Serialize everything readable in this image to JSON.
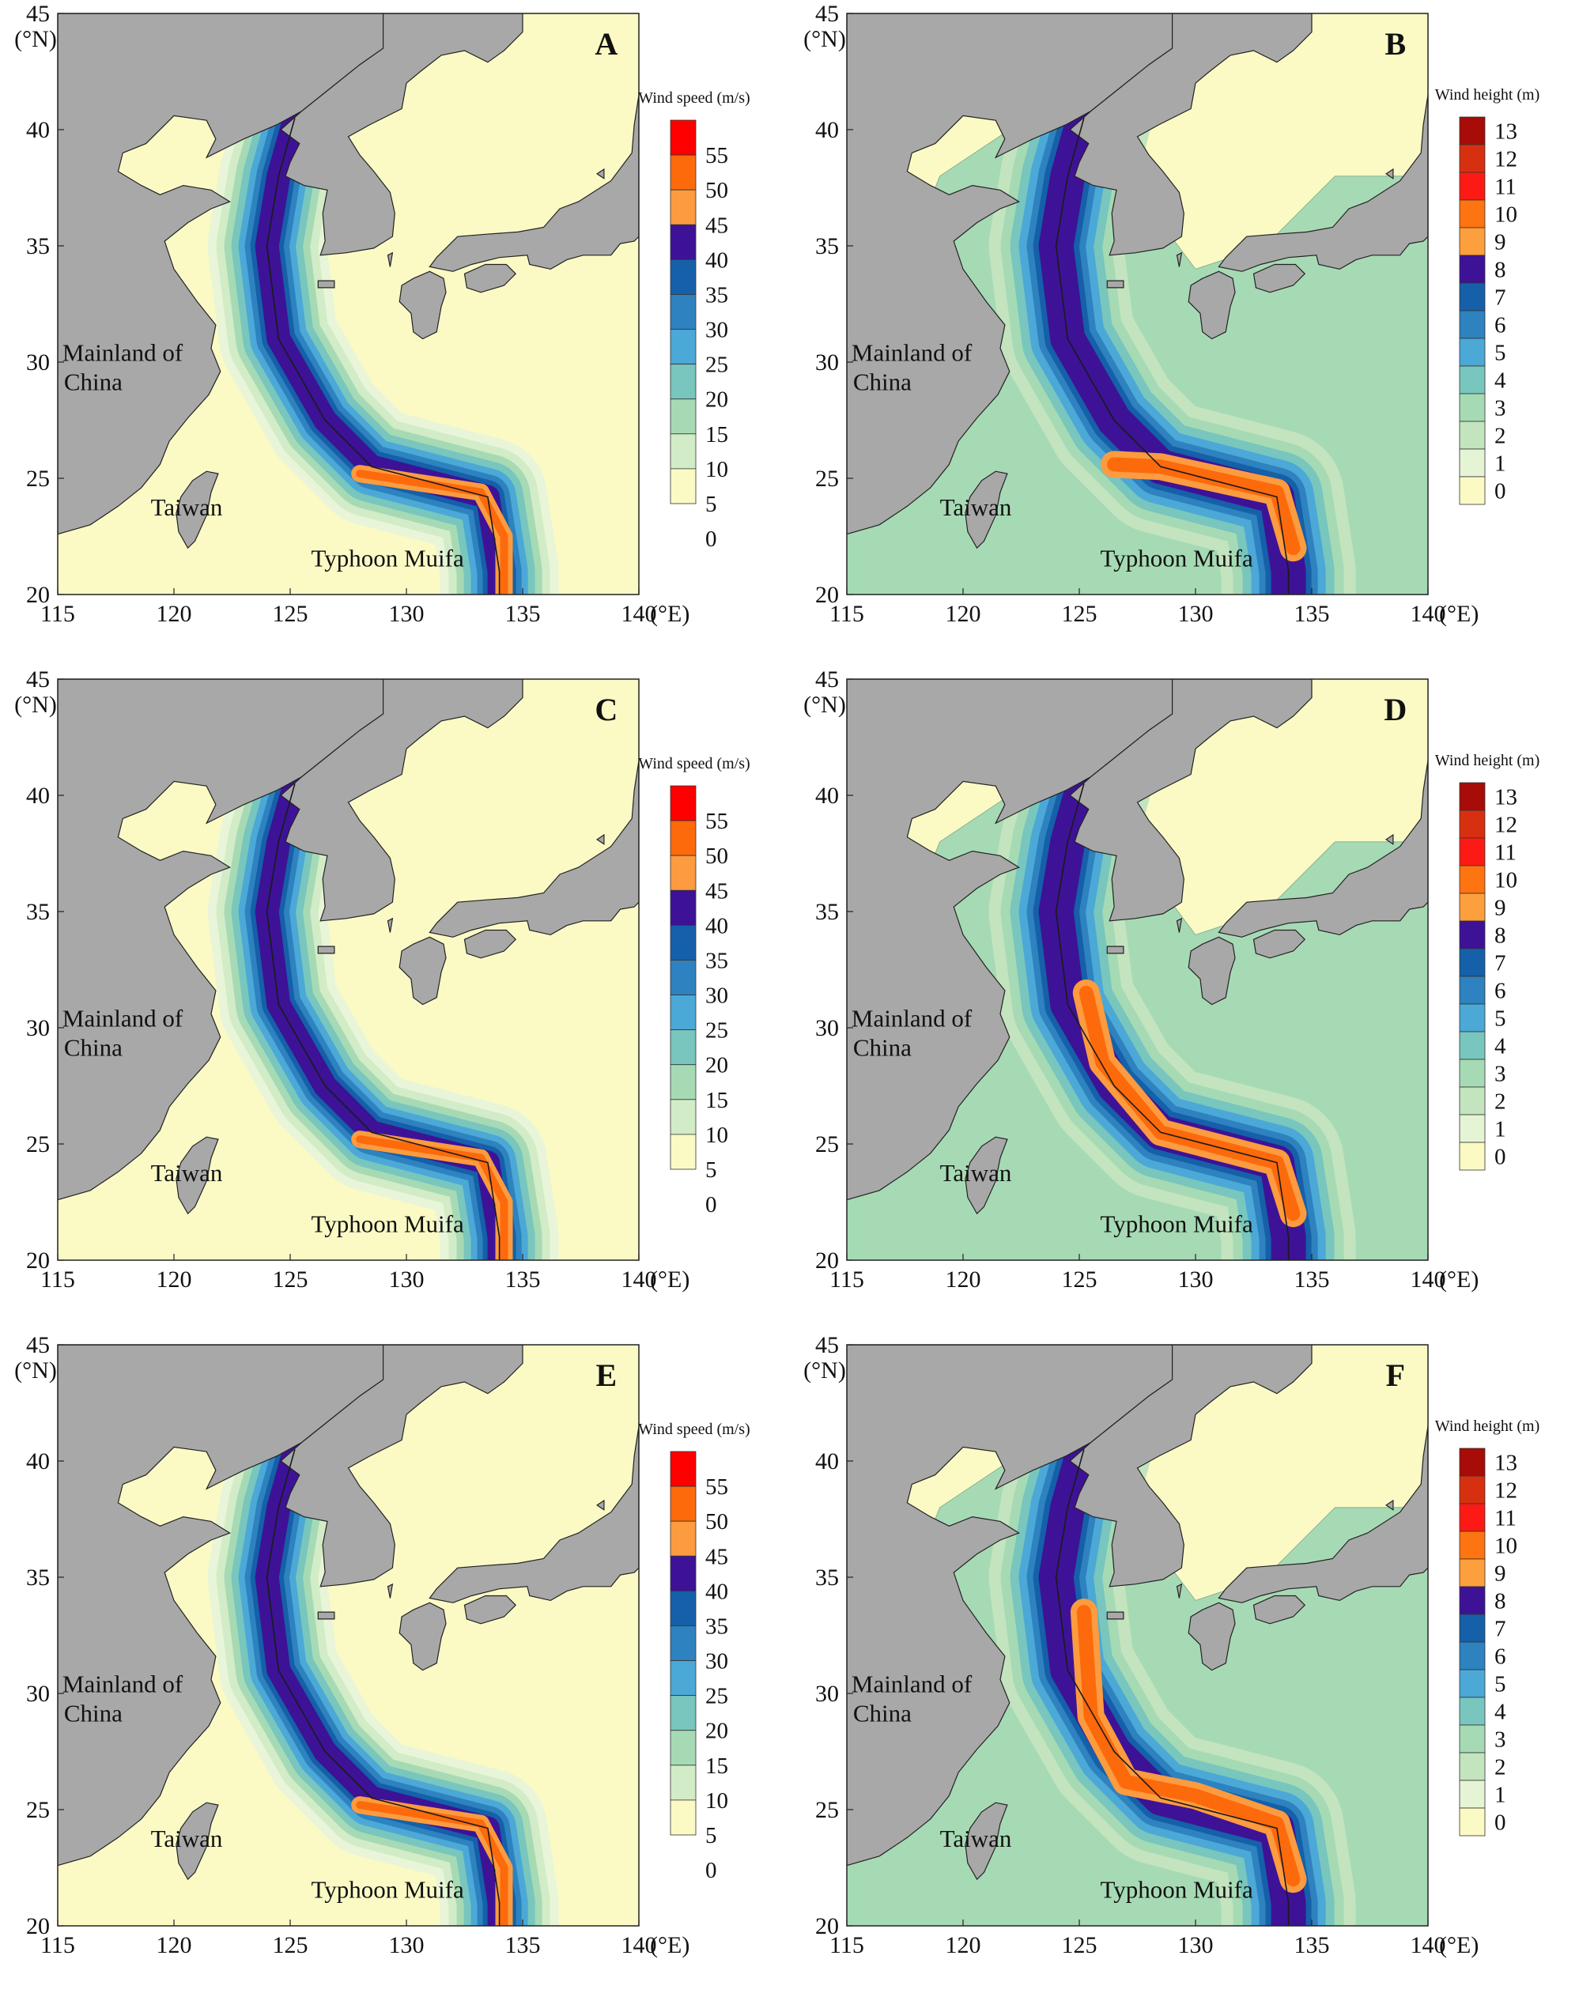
{
  "figure": {
    "panels": [
      {
        "letter": "A",
        "kind": "speed",
        "cb_title": "Wind speed (m/s)"
      },
      {
        "letter": "B",
        "kind": "height",
        "cb_title": "Wind height (m)"
      },
      {
        "letter": "C",
        "kind": "speed",
        "cb_title": "Wind speed (m/s)"
      },
      {
        "letter": "D",
        "kind": "height",
        "cb_title": "Wind height (m)"
      },
      {
        "letter": "E",
        "kind": "speed",
        "cb_title": "Wind speed (m/s)"
      },
      {
        "letter": "F",
        "kind": "height",
        "cb_title": "Wind height (m)"
      }
    ],
    "labels": {
      "mainland": [
        "Mainland of",
        "China"
      ],
      "taiwan": "Taiwan",
      "typhoon": "Typhoon Muifa"
    },
    "axes": {
      "lon_ticks": [
        "115",
        "120",
        "125",
        "130",
        "135",
        "140"
      ],
      "lon_unit": "(°E)",
      "lat_ticks": [
        "45",
        "40",
        "35",
        "30",
        "25",
        "20"
      ],
      "lat_unit": "(°N)",
      "lon_range": [
        115,
        140
      ],
      "lat_range": [
        20,
        45
      ]
    },
    "colorbars": {
      "speed": {
        "labels": [
          "55",
          "50",
          "45",
          "40",
          "35",
          "30",
          "25",
          "20",
          "15",
          "10",
          "5",
          "0"
        ],
        "colors": [
          "#fe0000",
          "#fd6a0b",
          "#fc9b3f",
          "#3d1296",
          "#1560a8",
          "#2d82bf",
          "#4ca8d6",
          "#78c6bd",
          "#a6dab4",
          "#d2ecc7",
          "#fbfac5"
        ]
      },
      "height": {
        "labels": [
          "13",
          "12",
          "11",
          "10",
          "9",
          "8",
          "7",
          "6",
          "5",
          "4",
          "3",
          "2",
          "1",
          "0"
        ],
        "colors": [
          "#a70c08",
          "#d73010",
          "#fe1a14",
          "#fd7410",
          "#fd9f3d",
          "#3d1296",
          "#1560a8",
          "#2d82bf",
          "#4ca8d6",
          "#78c6bd",
          "#a6dab4",
          "#c3e4be",
          "#e6f4d6",
          "#fbfac5"
        ]
      }
    },
    "colors": {
      "land": "#a8a8a8",
      "sea": "#fbfac5",
      "track": "#1a1a1a"
    },
    "track_lonlat": [
      [
        125.2,
        40.5
      ],
      [
        124.5,
        38.0
      ],
      [
        124.0,
        35.0
      ],
      [
        124.5,
        31.0
      ],
      [
        126.5,
        27.5
      ],
      [
        128.5,
        25.5
      ],
      [
        133.5,
        24.2
      ],
      [
        134.0,
        21.0
      ],
      [
        134.0,
        20.0
      ]
    ]
  }
}
